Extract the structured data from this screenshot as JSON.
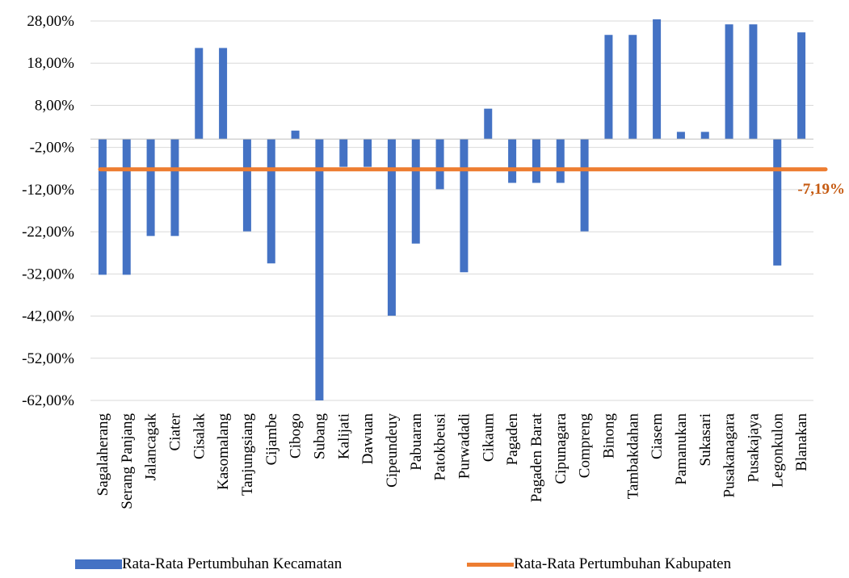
{
  "chart_data": {
    "type": "bar",
    "title": "",
    "xlabel": "",
    "ylabel": "",
    "ylim": [
      -62,
      28
    ],
    "yticks": [
      "28,00%",
      "18,00%",
      "8,00%",
      "-2,00%",
      "-12,00%",
      "-22,00%",
      "-32,00%",
      "-42,00%",
      "-52,00%",
      "-62,00%"
    ],
    "ytick_values": [
      28,
      18,
      8,
      -2,
      -12,
      -22,
      -32,
      -42,
      -52,
      -62
    ],
    "grid": true,
    "legend_position": "bottom",
    "categories": [
      "Sagalaherang",
      "Serang Panjang",
      "Jalancagak",
      "Ciater",
      "Cisalak",
      "Kasomalang",
      "Tanjungsiang",
      "Cijambe",
      "Cibogo",
      "Subang",
      "Kalijati",
      "Dawuan",
      "Cipeundeuy",
      "Pabuaran",
      "Patokbeusi",
      "Purwadadi",
      "Cikaum",
      "Pagaden",
      "Pagaden Barat",
      "Cipunagara",
      "Compreng",
      "Binong",
      "Tambakdahan",
      "Ciasem",
      "Pamanukan",
      "Sukasari",
      "Pusakanagara",
      "Pusakajaya",
      "Legonkulon",
      "Blanakan"
    ],
    "series": [
      {
        "name": "Rata-Rata Pertumbuhan Kecamatan",
        "kind": "bar",
        "color": "#4472C4",
        "values": [
          -32.2,
          -32.2,
          -23.0,
          -23.0,
          21.6,
          21.6,
          -21.9,
          -29.5,
          2.0,
          -62.0,
          -6.6,
          -6.6,
          -41.9,
          -24.8,
          -11.9,
          -31.6,
          7.2,
          -10.4,
          -10.4,
          -10.4,
          -21.9,
          24.7,
          24.7,
          28.4,
          1.7,
          1.7,
          27.2,
          27.2,
          -30.0,
          25.3
        ]
      },
      {
        "name": "Rata-Rata Pertumbuhan Kabupaten",
        "kind": "line",
        "color": "#ED7D31",
        "value": -7.19,
        "label": "-7,19%"
      }
    ]
  }
}
